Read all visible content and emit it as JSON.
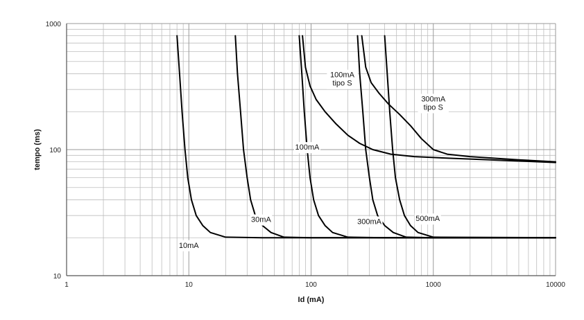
{
  "chart_data": {
    "type": "line",
    "title": "",
    "xlabel": "Id (mA)",
    "ylabel": "tempo (ms)",
    "x_scale": "log",
    "y_scale": "log",
    "xlim": [
      1,
      10000
    ],
    "ylim": [
      10,
      1000
    ],
    "grid": true,
    "x_ticks": [
      "1",
      "10",
      "100",
      "1000",
      "10000"
    ],
    "y_ticks": [
      "10",
      "100",
      "1000"
    ],
    "colors": {
      "curve": "#000000",
      "grid": "#bdbdbd",
      "axis": "#555555"
    },
    "series": [
      {
        "name": "10mA",
        "points": [
          [
            8,
            800
          ],
          [
            8.4,
            400
          ],
          [
            8.8,
            200
          ],
          [
            9.3,
            100
          ],
          [
            9.8,
            60
          ],
          [
            10.5,
            40
          ],
          [
            11.5,
            30
          ],
          [
            13,
            25
          ],
          [
            15,
            22
          ],
          [
            20,
            20.2
          ],
          [
            40,
            20
          ],
          [
            10000,
            20
          ]
        ]
      },
      {
        "name": "30mA",
        "points": [
          [
            24,
            800
          ],
          [
            25,
            400
          ],
          [
            26.5,
            200
          ],
          [
            28,
            100
          ],
          [
            30,
            60
          ],
          [
            32,
            40
          ],
          [
            35,
            30
          ],
          [
            40,
            25
          ],
          [
            47,
            22
          ],
          [
            60,
            20.2
          ],
          [
            100,
            20
          ],
          [
            10000,
            20
          ]
        ]
      },
      {
        "name": "100mA",
        "points": [
          [
            80,
            800
          ],
          [
            84,
            400
          ],
          [
            88,
            200
          ],
          [
            93,
            100
          ],
          [
            98,
            60
          ],
          [
            105,
            40
          ],
          [
            115,
            30
          ],
          [
            130,
            25
          ],
          [
            150,
            22
          ],
          [
            200,
            20.2
          ],
          [
            400,
            20
          ],
          [
            10000,
            20
          ]
        ]
      },
      {
        "name": "300mA",
        "points": [
          [
            240,
            800
          ],
          [
            250,
            400
          ],
          [
            265,
            200
          ],
          [
            280,
            100
          ],
          [
            300,
            60
          ],
          [
            320,
            40
          ],
          [
            350,
            30
          ],
          [
            400,
            25
          ],
          [
            470,
            22
          ],
          [
            600,
            20.2
          ],
          [
            1000,
            20
          ],
          [
            10000,
            20
          ]
        ]
      },
      {
        "name": "500mA",
        "points": [
          [
            400,
            800
          ],
          [
            420,
            400
          ],
          [
            440,
            200
          ],
          [
            465,
            100
          ],
          [
            490,
            60
          ],
          [
            530,
            40
          ],
          [
            580,
            30
          ],
          [
            650,
            25
          ],
          [
            750,
            22
          ],
          [
            1000,
            20.2
          ],
          [
            10000,
            20
          ]
        ]
      },
      {
        "name": "100mA tipo S",
        "points": [
          [
            85,
            800
          ],
          [
            90,
            450
          ],
          [
            98,
            320
          ],
          [
            110,
            250
          ],
          [
            130,
            200
          ],
          [
            160,
            160
          ],
          [
            200,
            130
          ],
          [
            250,
            112
          ],
          [
            320,
            100
          ],
          [
            450,
            92
          ],
          [
            700,
            88
          ],
          [
            1500,
            85
          ],
          [
            4000,
            82
          ],
          [
            10000,
            79
          ]
        ]
      },
      {
        "name": "300mA tipo S",
        "points": [
          [
            260,
            800
          ],
          [
            280,
            450
          ],
          [
            310,
            340
          ],
          [
            360,
            280
          ],
          [
            430,
            230
          ],
          [
            530,
            190
          ],
          [
            650,
            155
          ],
          [
            800,
            122
          ],
          [
            1000,
            100
          ],
          [
            1300,
            92
          ],
          [
            2000,
            88
          ],
          [
            5000,
            83
          ],
          [
            10000,
            80
          ]
        ]
      }
    ],
    "annotations": [
      {
        "lines": [
          "10mA"
        ],
        "at": [
          10,
          17.5
        ]
      },
      {
        "lines": [
          "30mA"
        ],
        "at": [
          39,
          28
        ]
      },
      {
        "lines": [
          "100mA"
        ],
        "at": [
          93,
          105
        ]
      },
      {
        "lines": [
          "300mA"
        ],
        "at": [
          300,
          27
        ]
      },
      {
        "lines": [
          "500mA"
        ],
        "at": [
          900,
          28.5
        ]
      },
      {
        "lines": [
          "100mA",
          "tipo S"
        ],
        "at": [
          180,
          365
        ]
      },
      {
        "lines": [
          "300mA",
          "tipo S"
        ],
        "at": [
          1000,
          235
        ]
      }
    ]
  }
}
